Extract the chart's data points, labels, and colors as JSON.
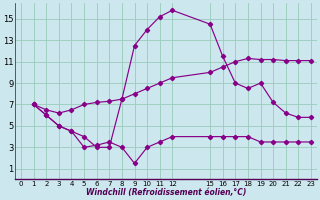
{
  "xlabel": "Windchill (Refroidissement éolien,°C)",
  "bg_color": "#cce8ee",
  "grid_color": "#99ccbb",
  "line_color": "#880088",
  "xlim": [
    -0.5,
    23.5
  ],
  "ylim": [
    0,
    16.5
  ],
  "xticks": [
    0,
    1,
    2,
    3,
    4,
    5,
    6,
    7,
    8,
    9,
    10,
    11,
    12,
    15,
    16,
    17,
    18,
    19,
    20,
    21,
    22,
    23
  ],
  "yticks": [
    1,
    3,
    5,
    7,
    9,
    11,
    13,
    15
  ],
  "series": [
    {
      "x": [
        1,
        2,
        3,
        4,
        5,
        6,
        7,
        8,
        9,
        10,
        11,
        12,
        15,
        16,
        17,
        18,
        19,
        20,
        21,
        22,
        23
      ],
      "y": [
        7,
        6,
        5,
        4.5,
        4,
        3,
        3,
        7.5,
        12.5,
        14,
        15.2,
        15.8,
        14.5,
        11.5,
        9,
        8.5,
        9,
        7.2,
        6.2,
        5.8,
        5.8
      ]
    },
    {
      "x": [
        1,
        2,
        3,
        4,
        5,
        6,
        7,
        8,
        9,
        10,
        11,
        12,
        15,
        16,
        17,
        18,
        19,
        20,
        21,
        22,
        23
      ],
      "y": [
        7,
        6,
        5,
        4.5,
        3,
        3.2,
        3.5,
        3,
        1.5,
        3,
        3.5,
        4,
        4,
        4,
        4,
        4,
        3.5,
        3.5,
        3.5,
        3.5,
        3.5
      ]
    },
    {
      "x": [
        1,
        2,
        3,
        4,
        5,
        6,
        7,
        8,
        9,
        10,
        11,
        12,
        15,
        16,
        17,
        18,
        19,
        20,
        21,
        22,
        23
      ],
      "y": [
        7,
        6.5,
        6.2,
        6.5,
        7,
        7.2,
        7.3,
        7.5,
        8,
        8.5,
        9,
        9.5,
        10,
        10.5,
        11,
        11.3,
        11.2,
        11.2,
        11.1,
        11.1,
        11.1
      ]
    }
  ]
}
